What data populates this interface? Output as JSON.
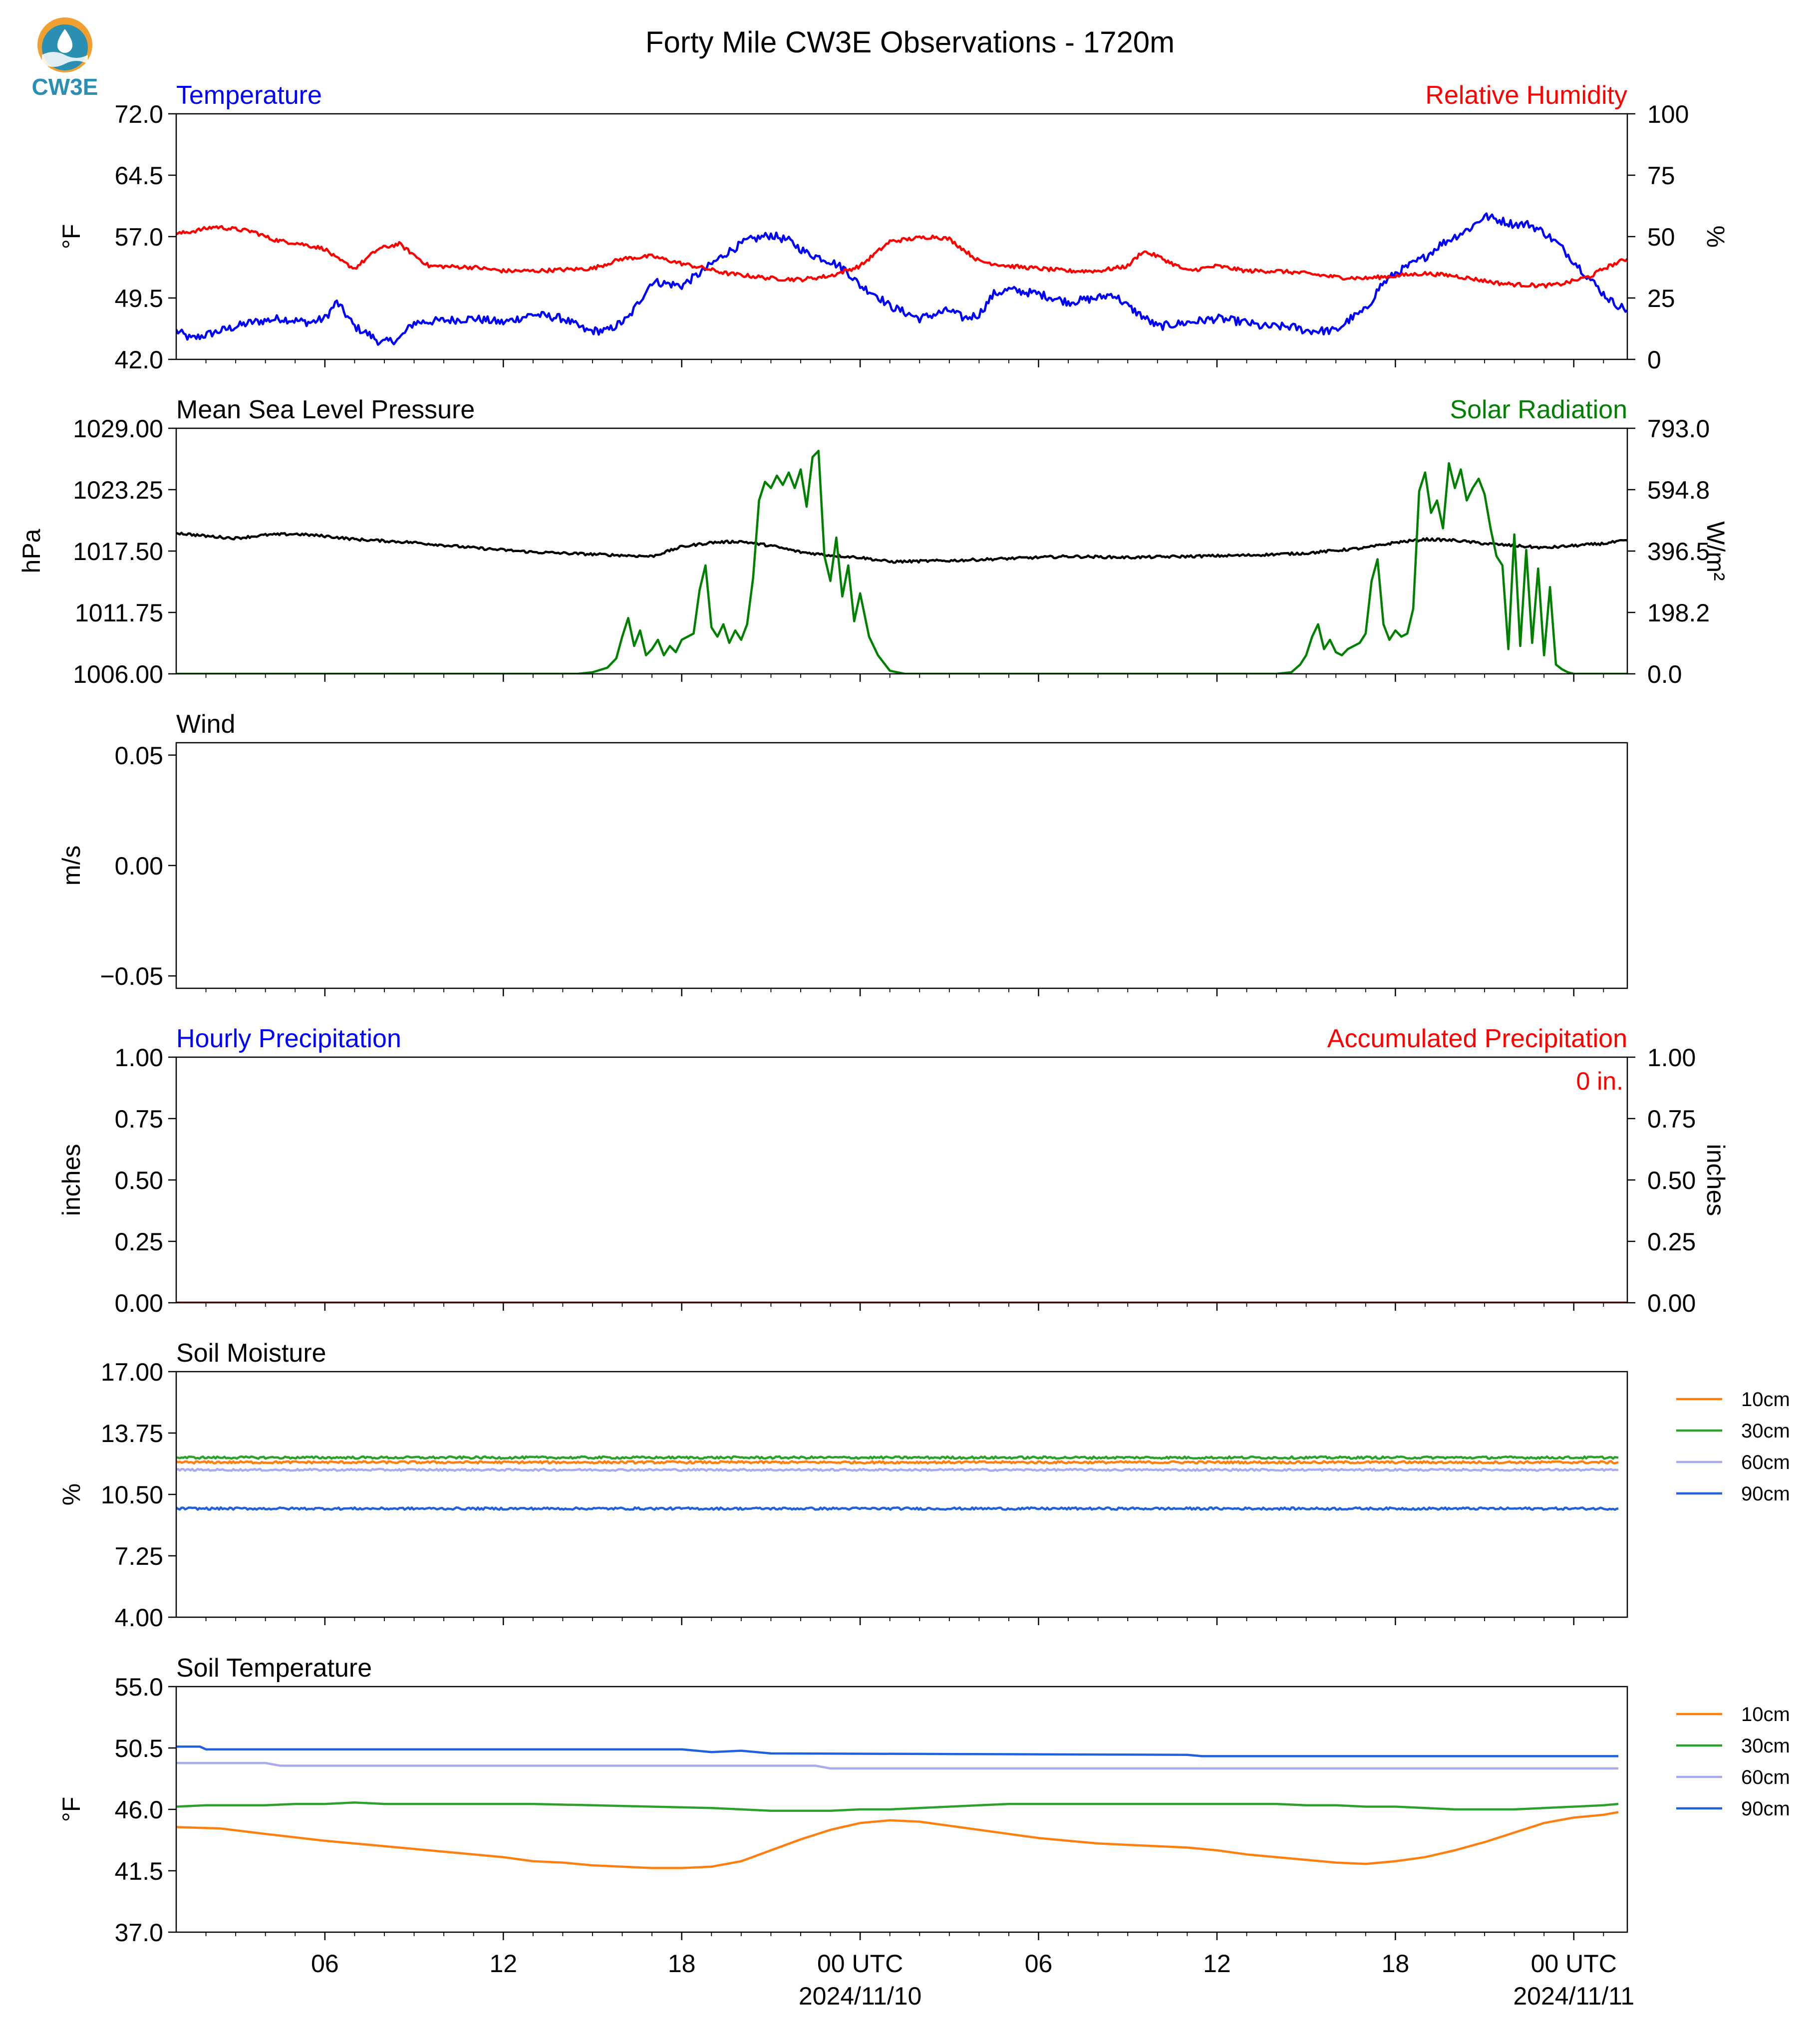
{
  "title": "Forty Mile CW3E Observations - 1720m",
  "logo": {
    "text": "CW3E",
    "color": "#2a8fb3",
    "accent": "#f0a030",
    "icon": "water-drop-logo-icon"
  },
  "colors": {
    "blue": "#0000ff",
    "red": "#ff0000",
    "green": "#008000",
    "black": "#000000",
    "orange": "#ff7f0e",
    "dkgreen": "#2ca02c",
    "lavender": "#aaaaee",
    "royal": "#1f5fe0"
  },
  "x_axis": {
    "range_hours": [
      0,
      48.8
    ],
    "ticks": [
      {
        "h": 5,
        "label": "06",
        "sub": ""
      },
      {
        "h": 11,
        "label": "12",
        "sub": ""
      },
      {
        "h": 17,
        "label": "18",
        "sub": ""
      },
      {
        "h": 23,
        "label": "00 UTC",
        "sub": "2024/11/10"
      },
      {
        "h": 29,
        "label": "06",
        "sub": ""
      },
      {
        "h": 35,
        "label": "12",
        "sub": ""
      },
      {
        "h": 41,
        "label": "18",
        "sub": ""
      },
      {
        "h": 47,
        "label": "00 UTC",
        "sub": "2024/11/11"
      }
    ]
  },
  "chart_data": [
    {
      "type": "line",
      "title_left": "Temperature",
      "title_right": "Relative Humidity",
      "ylabel": "°F",
      "ylabel_right": "%",
      "ylim": [
        42.0,
        72.0
      ],
      "yticks": [
        "42.0",
        "49.5",
        "57.0",
        "64.5",
        "72.0"
      ],
      "ylim_right": [
        0,
        100
      ],
      "yticks_right": [
        "0",
        "25",
        "50",
        "75",
        "100"
      ],
      "series": [
        {
          "axis": "left",
          "color": "#0000ff",
          "noise": 0.5,
          "x": [
            0,
            0.5,
            1.5,
            2.5,
            3.5,
            4.5,
            5,
            5.4,
            6,
            6.5,
            6.9,
            7.5,
            8,
            10,
            11,
            12,
            13,
            13.8,
            14.5,
            15.2,
            16,
            17,
            17.6,
            18.5,
            19.2,
            20,
            20.6,
            21.2,
            22,
            22.5,
            23,
            23.5,
            24,
            25,
            26,
            26.5,
            27,
            27.5,
            28,
            29,
            30,
            31,
            31.5,
            32,
            33,
            34,
            35,
            36,
            36.5,
            37,
            37.5,
            38,
            39,
            39.5,
            40,
            40.5,
            41,
            42,
            42.5,
            43,
            43.5,
            44,
            44.5,
            45,
            45.5,
            46,
            46.5,
            47,
            47.5,
            48,
            48.3,
            48.8
          ],
          "y": [
            45.5,
            44.5,
            45.5,
            46.5,
            47,
            46.5,
            47,
            49,
            46,
            45,
            44,
            44.5,
            46.5,
            47,
            46.5,
            47.5,
            47,
            45.5,
            45.5,
            47,
            51.5,
            51,
            52.5,
            55,
            56.5,
            57.2,
            56.5,
            55,
            54,
            53,
            51,
            50,
            48.5,
            47,
            48,
            47,
            47.5,
            50,
            50.5,
            50,
            49,
            49.5,
            50,
            48.5,
            46,
            46.5,
            47,
            46.5,
            46,
            46,
            46,
            45.5,
            45.5,
            47,
            48,
            51,
            52.5,
            54.5,
            56,
            57,
            58,
            59.5,
            59,
            58.5,
            58.5,
            57.5,
            56,
            54,
            52,
            50,
            49,
            48
          ]
        },
        {
          "axis": "right",
          "color": "#ff0000",
          "noise": 0.8,
          "x": [
            0,
            0.7,
            1.3,
            2,
            2.6,
            3.2,
            3.6,
            4,
            5,
            5.4,
            6,
            6.8,
            7.5,
            8.5,
            10,
            11,
            12,
            14,
            15,
            16,
            17,
            17.8,
            18.5,
            20,
            21,
            22,
            23,
            24,
            25,
            25.5,
            26,
            27,
            28,
            29,
            30,
            31,
            32,
            32.5,
            33,
            34,
            35,
            36,
            37,
            38,
            39,
            40,
            41,
            42,
            43,
            44,
            44.5,
            45,
            46,
            46.5,
            47,
            47.6,
            48,
            48.8
          ],
          "y": [
            51,
            52.5,
            54,
            53,
            52,
            49,
            48,
            47.5,
            45,
            41,
            37,
            45,
            47,
            38,
            37.5,
            36,
            36,
            37,
            41,
            42,
            39,
            37,
            35,
            33,
            32.5,
            34,
            38,
            48,
            49.5,
            50,
            49,
            40,
            38,
            37,
            36,
            36,
            38,
            44,
            42,
            36,
            38,
            36,
            36,
            35,
            33.5,
            33,
            34,
            35,
            34,
            32,
            31,
            30.5,
            30,
            30.5,
            32,
            34,
            37,
            41
          ]
        }
      ]
    },
    {
      "type": "line",
      "title_left": "Mean Sea Level Pressure",
      "title_right": "Solar Radiation",
      "ylabel": "hPa",
      "ylabel_right": "W/m²",
      "ylim": [
        1006.0,
        1029.0
      ],
      "yticks": [
        "1006.00",
        "1011.75",
        "1017.50",
        "1023.25",
        "1029.00"
      ],
      "ylim_right": [
        0.0,
        793.0
      ],
      "yticks_right": [
        "0.0",
        "198.2",
        "396.5",
        "594.8",
        "793.0"
      ],
      "series": [
        {
          "axis": "left",
          "color": "#000000",
          "noise": 0.12,
          "x": [
            0,
            1,
            2,
            3,
            4,
            5,
            6,
            8,
            10,
            12,
            14,
            16,
            17,
            18,
            19,
            20,
            21,
            22,
            23,
            24,
            26,
            28,
            30,
            32,
            34,
            36,
            38,
            40,
            41,
            42,
            43,
            44,
            45,
            46,
            47,
            48,
            48.8
          ],
          "y": [
            1019.2,
            1018.9,
            1018.7,
            1019.0,
            1019.1,
            1018.9,
            1018.6,
            1018.3,
            1017.8,
            1017.4,
            1017.2,
            1017.0,
            1017.9,
            1018.3,
            1018.4,
            1018.0,
            1017.4,
            1017.1,
            1016.9,
            1016.5,
            1016.6,
            1016.8,
            1017.0,
            1016.9,
            1017.0,
            1017.1,
            1017.3,
            1017.8,
            1018.3,
            1018.6,
            1018.5,
            1018.2,
            1018.0,
            1017.8,
            1018.0,
            1018.2,
            1018.5
          ]
        },
        {
          "axis": "right",
          "color": "#008000",
          "noise": 0,
          "x": [
            0,
            13.5,
            14,
            14.5,
            14.8,
            15.0,
            15.2,
            15.4,
            15.6,
            15.8,
            16.0,
            16.2,
            16.4,
            16.6,
            16.8,
            17.0,
            17.2,
            17.4,
            17.6,
            17.8,
            18.0,
            18.2,
            18.4,
            18.6,
            18.8,
            19.0,
            19.2,
            19.4,
            19.6,
            19.8,
            20.0,
            20.2,
            20.4,
            20.6,
            20.8,
            21.0,
            21.2,
            21.4,
            21.6,
            21.8,
            22.0,
            22.2,
            22.4,
            22.6,
            22.8,
            23.0,
            23.3,
            23.6,
            24,
            24.5,
            37,
            37.5,
            37.8,
            38.0,
            38.2,
            38.4,
            38.6,
            38.8,
            39.0,
            39.2,
            39.4,
            39.6,
            39.8,
            40.0,
            40.2,
            40.4,
            40.6,
            40.8,
            41.0,
            41.2,
            41.4,
            41.6,
            41.8,
            42.0,
            42.2,
            42.4,
            42.6,
            42.8,
            43.0,
            43.2,
            43.4,
            43.6,
            43.8,
            44.0,
            44.2,
            44.4,
            44.6,
            44.8,
            45.0,
            45.2,
            45.4,
            45.6,
            45.8,
            46.0,
            46.2,
            46.4,
            46.6,
            46.8,
            47.0,
            47.2,
            47.6,
            48,
            48.8
          ],
          "y": [
            0,
            0,
            5,
            20,
            50,
            120,
            180,
            90,
            140,
            60,
            80,
            110,
            60,
            90,
            70,
            110,
            120,
            130,
            270,
            350,
            150,
            120,
            160,
            100,
            140,
            110,
            160,
            310,
            560,
            620,
            600,
            640,
            610,
            650,
            600,
            660,
            540,
            700,
            720,
            380,
            300,
            440,
            250,
            350,
            170,
            260,
            120,
            60,
            10,
            0,
            0,
            5,
            30,
            60,
            120,
            160,
            80,
            110,
            70,
            60,
            80,
            90,
            100,
            130,
            300,
            370,
            160,
            110,
            140,
            120,
            130,
            210,
            590,
            650,
            520,
            560,
            470,
            680,
            600,
            660,
            560,
            600,
            630,
            580,
            470,
            380,
            350,
            80,
            450,
            90,
            400,
            100,
            340,
            60,
            280,
            30,
            15,
            5,
            0,
            0,
            0,
            0,
            0
          ]
        }
      ]
    },
    {
      "type": "line",
      "title_left": "Wind",
      "title_right": "",
      "ylabel": "m/s",
      "ylabel_right": "",
      "ylim": [
        -0.0556,
        0.0556
      ],
      "yticks_at": [
        -0.05,
        0.0,
        0.05
      ],
      "yticks": [
        "−0.05",
        "0.00",
        "0.05"
      ],
      "series": []
    },
    {
      "type": "line",
      "title_left": "Hourly Precipitation",
      "title_right": "Accumulated Precipitation",
      "annotation": "0 in.",
      "ylabel": "inches",
      "ylabel_right": "inches",
      "ylim": [
        0.0,
        1.0
      ],
      "yticks": [
        "0.00",
        "0.25",
        "0.50",
        "0.75",
        "1.00"
      ],
      "ylim_right": [
        0.0,
        1.0
      ],
      "yticks_right": [
        "0.00",
        "0.25",
        "0.50",
        "0.75",
        "1.00"
      ],
      "series": [
        {
          "axis": "left",
          "color": "#0000ff",
          "noise": 0,
          "x": [
            0,
            48.8
          ],
          "y": [
            0,
            0
          ]
        },
        {
          "axis": "right",
          "color": "#8b0000",
          "noise": 0,
          "x": [
            0,
            48.8
          ],
          "y": [
            0,
            0
          ]
        }
      ]
    },
    {
      "type": "line",
      "title_left": "Soil Moisture",
      "title_right": "",
      "ylabel": "%",
      "ylabel_right": "",
      "ylim": [
        4.0,
        17.0
      ],
      "yticks": [
        "4.00",
        "7.25",
        "10.50",
        "13.75",
        "17.00"
      ],
      "legend": [
        "10cm",
        "30cm",
        "60cm",
        "90cm"
      ],
      "series": [
        {
          "name": "10cm",
          "color": "#ff7f0e",
          "noise": 0.06,
          "x": [
            0,
            48.5
          ],
          "y": [
            12.2,
            12.2
          ]
        },
        {
          "name": "30cm",
          "color": "#2ca02c",
          "noise": 0.06,
          "x": [
            0,
            48.5
          ],
          "y": [
            12.45,
            12.45
          ]
        },
        {
          "name": "60cm",
          "color": "#aaaaee",
          "noise": 0.05,
          "x": [
            0,
            48.5
          ],
          "y": [
            11.8,
            11.8
          ]
        },
        {
          "name": "90cm",
          "color": "#1f5fe0",
          "noise": 0.06,
          "x": [
            0,
            48.5
          ],
          "y": [
            9.75,
            9.75
          ]
        }
      ]
    },
    {
      "type": "line",
      "title_left": "Soil Temperature",
      "title_right": "",
      "ylabel": "°F",
      "ylabel_right": "",
      "ylim": [
        37.0,
        55.0
      ],
      "yticks": [
        "37.0",
        "41.5",
        "46.0",
        "50.5",
        "55.0"
      ],
      "legend": [
        "10cm",
        "30cm",
        "60cm",
        "90cm"
      ],
      "series": [
        {
          "name": "10cm",
          "color": "#ff7f0e",
          "noise": 0,
          "x": [
            0,
            1.5,
            3,
            5,
            7,
            9,
            11,
            12,
            13,
            14,
            15,
            16,
            17,
            18,
            19,
            20,
            21,
            22,
            23,
            24,
            25,
            26,
            27,
            28,
            29,
            30,
            31,
            32,
            33,
            34,
            35,
            36,
            37,
            38,
            39,
            40,
            41,
            42,
            43,
            44,
            45,
            46,
            47,
            48,
            48.5
          ],
          "y": [
            44.7,
            44.6,
            44.2,
            43.7,
            43.3,
            42.9,
            42.5,
            42.2,
            42.1,
            41.9,
            41.8,
            41.7,
            41.7,
            41.8,
            42.2,
            43.0,
            43.8,
            44.5,
            45.0,
            45.2,
            45.1,
            44.8,
            44.5,
            44.2,
            43.9,
            43.7,
            43.5,
            43.4,
            43.3,
            43.2,
            43.0,
            42.7,
            42.5,
            42.3,
            42.1,
            42.0,
            42.2,
            42.5,
            43.0,
            43.6,
            44.3,
            45.0,
            45.4,
            45.6,
            45.8
          ]
        },
        {
          "name": "30cm",
          "color": "#2ca02c",
          "noise": 0,
          "x": [
            0,
            1,
            3,
            4,
            5,
            6,
            7,
            8,
            10,
            12,
            14,
            16,
            18,
            19,
            20,
            21,
            22,
            23,
            24,
            25,
            26,
            27,
            28,
            29,
            30,
            31,
            32,
            33,
            34,
            35,
            36,
            37,
            38,
            39,
            40,
            41,
            42,
            43,
            44,
            45,
            46,
            47,
            48,
            48.5
          ],
          "y": [
            46.2,
            46.3,
            46.3,
            46.4,
            46.4,
            46.5,
            46.4,
            46.4,
            46.4,
            46.4,
            46.3,
            46.2,
            46.1,
            46.0,
            45.9,
            45.9,
            45.9,
            46.0,
            46.0,
            46.1,
            46.2,
            46.3,
            46.4,
            46.4,
            46.4,
            46.4,
            46.4,
            46.4,
            46.4,
            46.4,
            46.4,
            46.4,
            46.3,
            46.3,
            46.2,
            46.2,
            46.1,
            46.0,
            46.0,
            46.0,
            46.1,
            46.2,
            46.3,
            46.4
          ]
        },
        {
          "name": "60cm",
          "color": "#aaaaee",
          "noise": 0,
          "x": [
            0,
            3,
            3.5,
            21.5,
            22,
            48.5
          ],
          "y": [
            49.4,
            49.4,
            49.2,
            49.2,
            49.0,
            49.0
          ]
        },
        {
          "name": "90cm",
          "color": "#1f5fe0",
          "noise": 0,
          "x": [
            0,
            0.8,
            1,
            17,
            18,
            19,
            20,
            34,
            34.5,
            48.5
          ],
          "y": [
            50.6,
            50.6,
            50.4,
            50.4,
            50.2,
            50.3,
            50.1,
            50.0,
            49.9,
            49.9
          ]
        }
      ]
    }
  ]
}
